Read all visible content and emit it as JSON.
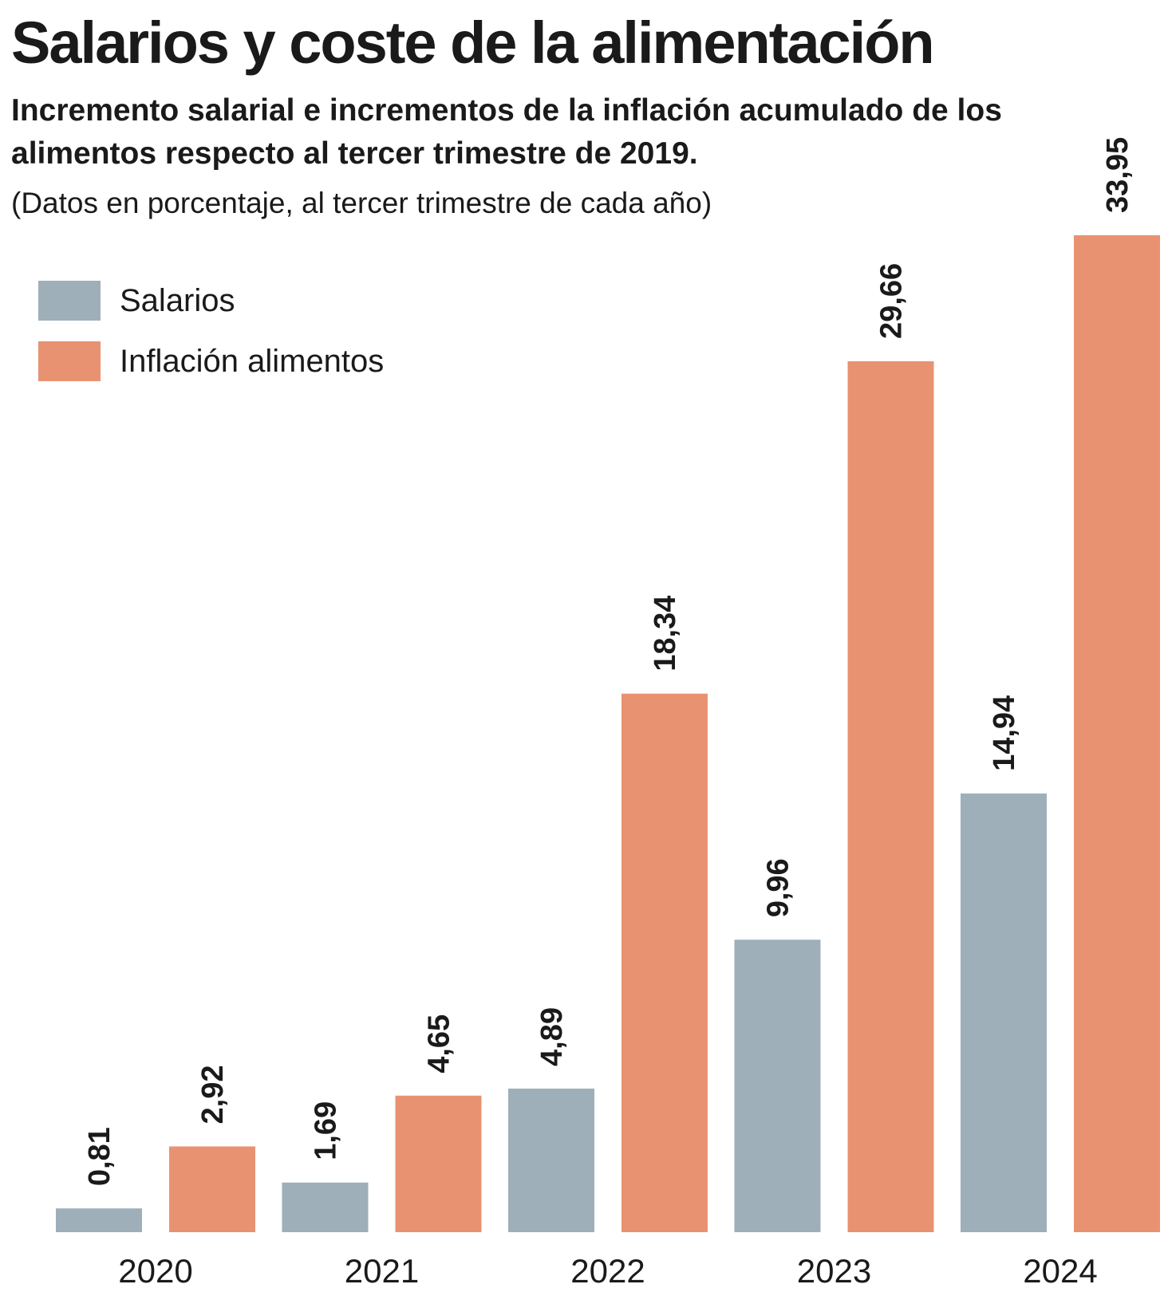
{
  "chart_data": {
    "type": "bar",
    "title": "Salarios y coste de la alimentación",
    "subtitle": "Incremento salarial e incrementos de la inflación acumulado de los alimentos respecto al tercer trimestre de 2019.",
    "note": "(Datos en porcentaje, al tercer trimestre de cada año)",
    "categories": [
      "2020",
      "2021",
      "2022",
      "2023",
      "2024"
    ],
    "series": [
      {
        "name": "Salarios",
        "color": "#9eafba",
        "values": [
          0.81,
          1.69,
          4.89,
          9.96,
          14.94
        ],
        "labels": [
          "0,81",
          "1,69",
          "4,89",
          "9,96",
          "14,94"
        ]
      },
      {
        "name": "Inflación alimentos",
        "color": "#e89272",
        "values": [
          2.92,
          4.65,
          18.34,
          29.66,
          33.95
        ],
        "labels": [
          "2,92",
          "4,65",
          "18,34",
          "29,66",
          "33,95"
        ]
      }
    ],
    "ylim": [
      0,
      33.95
    ],
    "grid": false,
    "legend": "top-left",
    "data_labels": "vertical"
  }
}
